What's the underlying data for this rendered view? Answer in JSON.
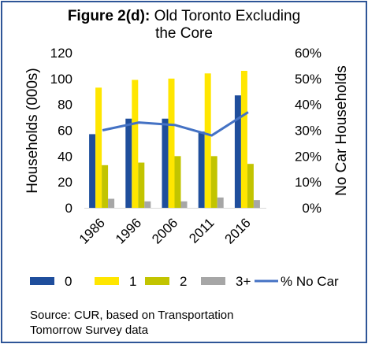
{
  "chart_data": {
    "type": "bar",
    "title_bold": "Figure 2(d):",
    "title_line1_rest": " Old Toronto Excluding",
    "title_line2": "the Core",
    "ylabel": "Households (000s)",
    "y2label": "No Car Households",
    "ylim": [
      0,
      120
    ],
    "y2lim": [
      0,
      0.6
    ],
    "yticks": [
      "0",
      "20",
      "40",
      "60",
      "80",
      "100",
      "120"
    ],
    "y2ticks": [
      "0%",
      "10%",
      "20%",
      "30%",
      "40%",
      "50%",
      "60%"
    ],
    "categories": [
      "1986",
      "1996",
      "2006",
      "2011",
      "2016"
    ],
    "series": [
      {
        "name": "0",
        "color": "#1f4e9c",
        "values": [
          57,
          69,
          69,
          59,
          87
        ]
      },
      {
        "name": "1",
        "color": "#ffe600",
        "values": [
          93,
          99,
          100,
          104,
          106
        ]
      },
      {
        "name": "2",
        "color": "#c2c400",
        "values": [
          33,
          35,
          40,
          40,
          34
        ]
      },
      {
        "name": "3+",
        "color": "#a6a6a6",
        "values": [
          7,
          5,
          5,
          8,
          6
        ]
      }
    ],
    "line_series": {
      "name": "% No Car",
      "color": "#4472c4",
      "values": [
        0.3,
        0.33,
        0.32,
        0.28,
        0.37
      ]
    },
    "grid": false,
    "legend_position": "bottom"
  },
  "source_line1": "Source: CUR, based on Transportation",
  "source_line2": "Tomorrow Survey data"
}
